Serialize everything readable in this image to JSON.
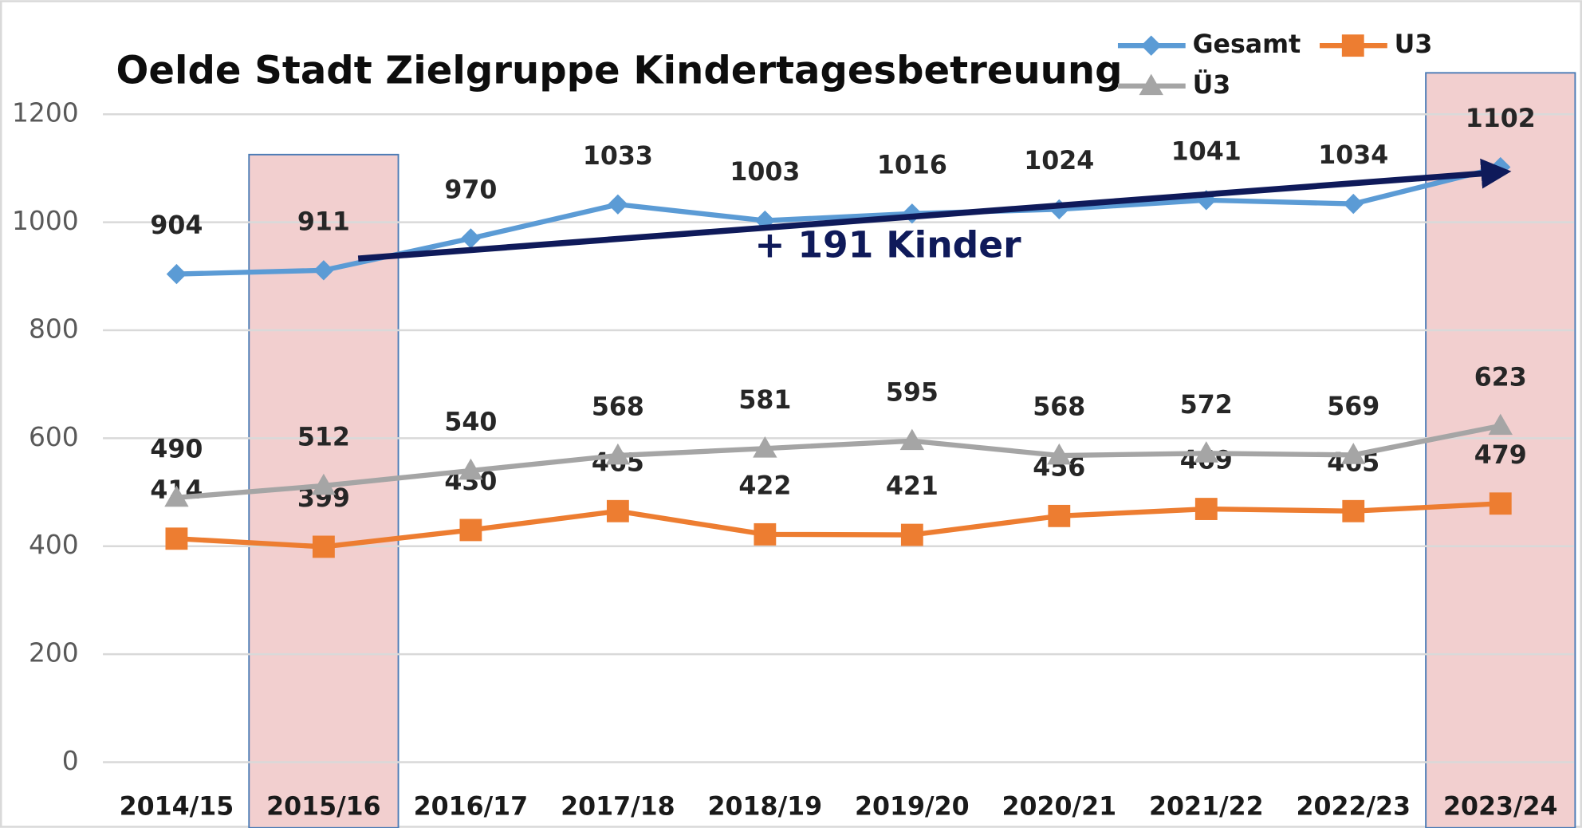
{
  "chart_data": {
    "type": "line",
    "title": "Oelde Stadt Zielgruppe Kindertagesbetreuung",
    "categories": [
      "2014/15",
      "2015/16",
      "2016/17",
      "2017/18",
      "2018/19",
      "2019/20",
      "2020/21",
      "2021/22",
      "2022/23",
      "2023/24"
    ],
    "series": [
      {
        "name": "Gesamt",
        "color": "#5b9bd5",
        "marker": "diamond",
        "values": [
          904,
          911,
          970,
          1033,
          1003,
          1016,
          1024,
          1041,
          1034,
          1102
        ]
      },
      {
        "name": "U3",
        "color": "#ed7d31",
        "marker": "square",
        "values": [
          414,
          399,
          430,
          465,
          422,
          421,
          456,
          469,
          465,
          479
        ]
      },
      {
        "name": "Ü3",
        "color": "#a5a5a5",
        "marker": "triangle",
        "values": [
          490,
          512,
          540,
          568,
          581,
          595,
          568,
          572,
          569,
          623
        ]
      }
    ],
    "ylim": [
      0,
      1200
    ],
    "yticks": [
      0,
      200,
      400,
      600,
      800,
      1000,
      1200
    ],
    "grid": true,
    "highlight": [
      1,
      9
    ],
    "annotation": "+ 191 Kinder"
  }
}
